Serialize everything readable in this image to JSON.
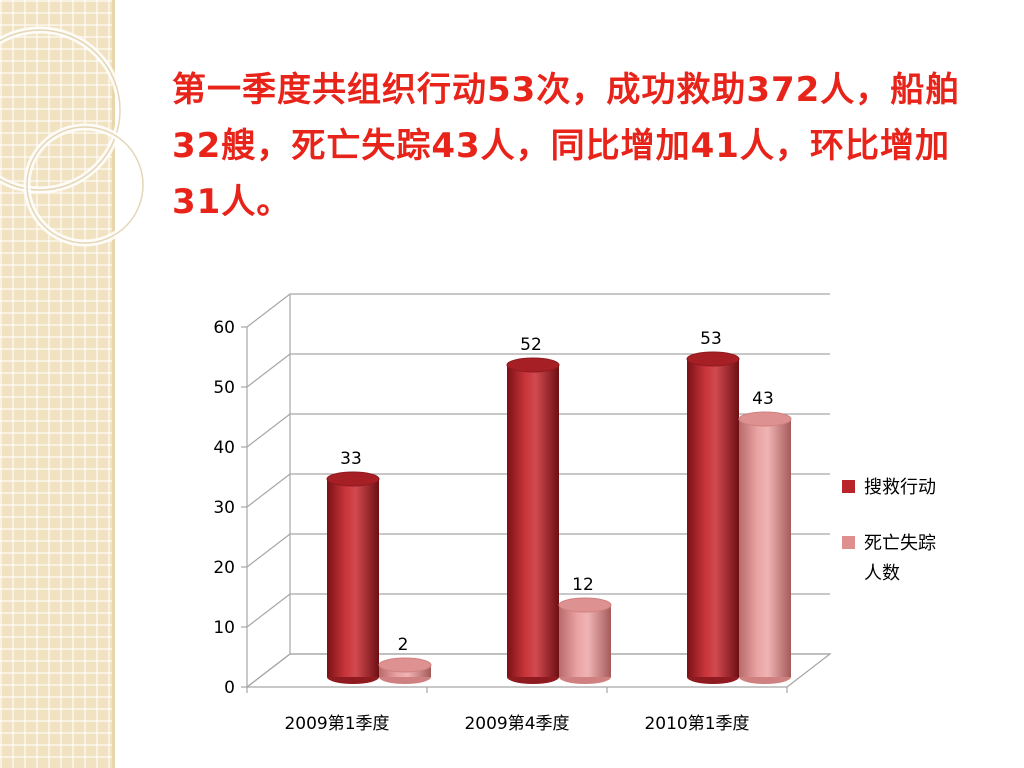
{
  "slide": {
    "title": "第一季度共组织行动53次，成功救助372人，船舶32艘，死亡失踪43人，同比增加41人，环比增加31人。"
  },
  "colors": {
    "title": "#e8231a",
    "series_1": "#b8242a",
    "series_2": "#e08f8f",
    "background_strip": "#f1e3c2"
  },
  "chart_data": {
    "type": "bar",
    "categories": [
      "2009第1季度",
      "2009第4季度",
      "2010第1季度"
    ],
    "series": [
      {
        "name": "搜救行动",
        "values": [
          33,
          52,
          53
        ]
      },
      {
        "name": "死亡失踪人数",
        "values": [
          2,
          12,
          43
        ]
      }
    ],
    "title": "",
    "xlabel": "",
    "ylabel": "",
    "ylim": [
      0,
      60
    ],
    "yticks": [
      0,
      10,
      20,
      30,
      40,
      50,
      60
    ],
    "grid": true,
    "legend": "right",
    "style": "3d-cylinder"
  }
}
